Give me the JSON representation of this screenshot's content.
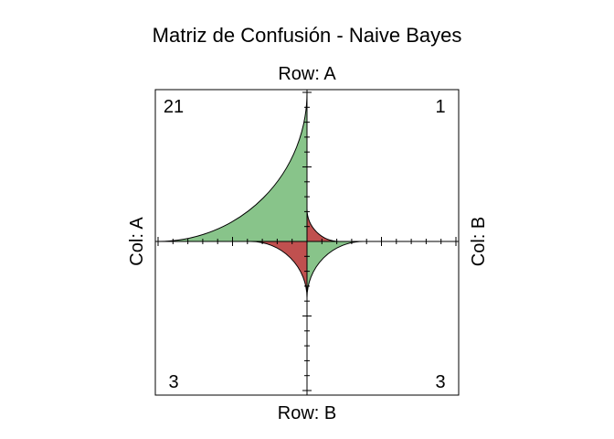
{
  "chart_data": {
    "type": "fourfold",
    "title": "Matriz de Confusión - Naive Bayes",
    "row_labels": {
      "top": "Row: A",
      "bottom": "Row: B"
    },
    "col_labels": {
      "left": "Col: A",
      "right": "Col: B"
    },
    "cells": [
      {
        "row": "A",
        "col": "A",
        "value": 21,
        "quadrant": "top-left",
        "color": "#88c48a"
      },
      {
        "row": "A",
        "col": "B",
        "value": 1,
        "quadrant": "top-right",
        "color": "#c0504f"
      },
      {
        "row": "B",
        "col": "A",
        "value": 3,
        "quadrant": "bottom-left",
        "color": "#c0504f"
      },
      {
        "row": "B",
        "col": "B",
        "value": 3,
        "quadrant": "bottom-right",
        "color": "#88c48a"
      }
    ],
    "axes": {
      "tick_marks": true,
      "grid": false,
      "legend": "none"
    }
  }
}
